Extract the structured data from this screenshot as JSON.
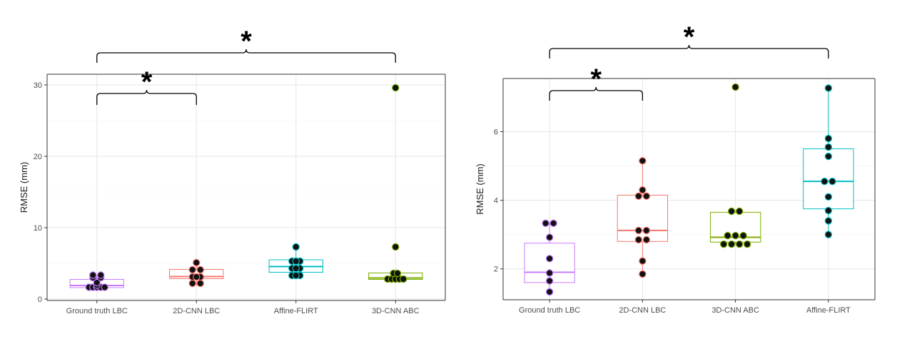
{
  "chart_data": [
    {
      "type": "box",
      "xlabel": "",
      "ylabel": "RMSE (mm)",
      "ylim": [
        -0.2,
        31.5
      ],
      "yticks": [
        0,
        10,
        20,
        30
      ],
      "grid": true,
      "categories": [
        "Ground truth LBC",
        "2D-CNN LBC",
        "Affine-FLIRT",
        "3D-CNN ABC"
      ],
      "colors": [
        "#c77cff",
        "#f8766d",
        "#00bfc4",
        "#7cae00"
      ],
      "boxes": [
        {
          "q1": 1.6,
          "median": 1.9,
          "q3": 2.75,
          "whisker_low": 1.3,
          "whisker_high": 3.35
        },
        {
          "q1": 2.85,
          "median": 3.15,
          "q3": 4.15,
          "whisker_low": 1.9,
          "whisker_high": 5.1
        },
        {
          "q1": 3.75,
          "median": 4.55,
          "q3": 5.5,
          "whisker_low": 3.0,
          "whisker_high": 7.3
        },
        {
          "q1": 2.75,
          "median": 2.95,
          "q3": 3.65,
          "whisker_low": 2.7,
          "whisker_high": 3.7
        }
      ],
      "points": [
        [
          [
            1.65,
            -1
          ],
          [
            1.65,
            -0.5
          ],
          [
            1.65,
            0
          ],
          [
            1.65,
            0.5
          ],
          [
            1.65,
            1
          ],
          [
            1.95,
            0
          ],
          [
            2.3,
            0
          ],
          [
            3.0,
            -0.5
          ],
          [
            3.0,
            0.5
          ],
          [
            3.35,
            -0.5
          ],
          [
            3.35,
            0.5
          ]
        ],
        [
          [
            2.2,
            -0.5
          ],
          [
            2.2,
            0.5
          ],
          [
            3.1,
            -0.5
          ],
          [
            3.1,
            0.5
          ],
          [
            3.1,
            0
          ],
          [
            4.1,
            -0.5
          ],
          [
            4.1,
            0.5
          ],
          [
            5.1,
            0
          ]
        ],
        [
          [
            3.3,
            -0.5
          ],
          [
            3.3,
            0.5
          ],
          [
            3.3,
            0
          ],
          [
            4.3,
            -0.5
          ],
          [
            4.3,
            0.5
          ],
          [
            4.3,
            0
          ],
          [
            5.3,
            -0.5
          ],
          [
            5.3,
            0.5
          ],
          [
            5.3,
            0
          ],
          [
            7.3,
            0
          ]
        ],
        [
          [
            2.8,
            -1
          ],
          [
            2.8,
            -0.5
          ],
          [
            2.8,
            0
          ],
          [
            2.8,
            0.5
          ],
          [
            2.8,
            1
          ],
          [
            3.6,
            -0.25
          ],
          [
            3.6,
            0.25
          ],
          [
            7.3,
            0
          ],
          [
            29.6,
            0
          ]
        ]
      ],
      "significance": [
        {
          "from": 0,
          "to": 3,
          "label": "*"
        },
        {
          "from": 0,
          "to": 1,
          "label": "*"
        }
      ]
    },
    {
      "type": "box",
      "xlabel": "",
      "ylabel": "RMSE (mm)",
      "ylim": [
        1.1,
        7.55
      ],
      "yticks": [
        2,
        4,
        6
      ],
      "grid": true,
      "categories": [
        "Ground truth LBC",
        "2D-CNN LBC",
        "3D-CNN ABC",
        "Affine-FLIRT"
      ],
      "colors": [
        "#c77cff",
        "#f8766d",
        "#7cae00",
        "#00bfc4"
      ],
      "boxes": [
        {
          "q1": 1.6,
          "median": 1.9,
          "q3": 2.75,
          "whisker_low": 1.3,
          "whisker_high": 3.35
        },
        {
          "q1": 2.8,
          "median": 3.12,
          "q3": 4.15,
          "whisker_low": 1.85,
          "whisker_high": 5.15
        },
        {
          "q1": 2.78,
          "median": 2.92,
          "q3": 3.65,
          "whisker_low": 2.72,
          "whisker_high": 3.68
        },
        {
          "q1": 3.75,
          "median": 4.55,
          "q3": 5.5,
          "whisker_low": 3.0,
          "whisker_high": 7.27
        }
      ],
      "points": [
        [
          [
            1.33,
            0
          ],
          [
            1.65,
            0
          ],
          [
            1.88,
            0
          ],
          [
            2.3,
            0
          ],
          [
            2.92,
            0
          ],
          [
            3.33,
            -0.5
          ],
          [
            3.33,
            0.5
          ]
        ],
        [
          [
            1.85,
            0
          ],
          [
            2.23,
            0
          ],
          [
            2.85,
            -0.5
          ],
          [
            2.85,
            0.5
          ],
          [
            3.12,
            -0.5
          ],
          [
            3.12,
            0.5
          ],
          [
            4.12,
            -0.5
          ],
          [
            4.12,
            0.5
          ],
          [
            4.3,
            0
          ],
          [
            5.15,
            0
          ]
        ],
        [
          [
            2.72,
            -1.5
          ],
          [
            2.72,
            -0.5
          ],
          [
            2.72,
            0.5
          ],
          [
            2.72,
            1.5
          ],
          [
            2.97,
            -1
          ],
          [
            2.97,
            0
          ],
          [
            2.97,
            1
          ],
          [
            3.68,
            -0.5
          ],
          [
            3.68,
            0.5
          ],
          [
            7.3,
            0
          ]
        ],
        [
          [
            3.0,
            0
          ],
          [
            3.4,
            0
          ],
          [
            3.7,
            0
          ],
          [
            4.1,
            0
          ],
          [
            4.55,
            -0.5
          ],
          [
            4.55,
            0.5
          ],
          [
            5.28,
            0
          ],
          [
            5.55,
            0
          ],
          [
            5.8,
            0
          ],
          [
            7.27,
            0
          ]
        ]
      ],
      "significance": [
        {
          "from": 0,
          "to": 3,
          "label": "*"
        },
        {
          "from": 0,
          "to": 1,
          "label": "*"
        }
      ]
    }
  ]
}
